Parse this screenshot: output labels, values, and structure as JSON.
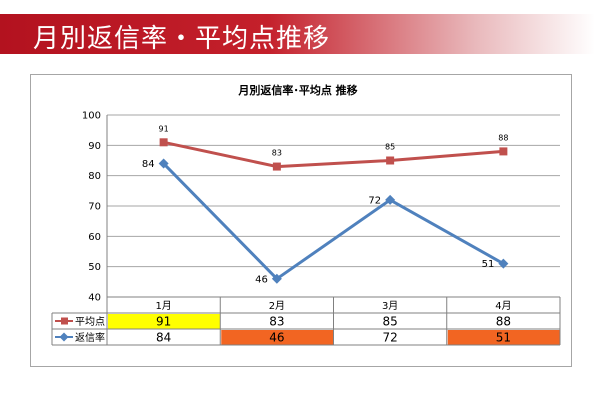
{
  "banner": {
    "title": "月別返信率・平均点推移"
  },
  "chart_data": {
    "type": "line",
    "title": "月別返信率･平均点 推移",
    "categories": [
      "1月",
      "2月",
      "3月",
      "4月"
    ],
    "ylim": [
      40,
      100
    ],
    "yticks": [
      40,
      50,
      60,
      70,
      80,
      90,
      100
    ],
    "grid": true,
    "legend": "data-table",
    "series": [
      {
        "name": "平均点",
        "values": [
          91,
          83,
          85,
          88
        ],
        "color": "#c0504d",
        "marker": "square",
        "table_values": [
          "91",
          "83",
          "85",
          "88"
        ]
      },
      {
        "name": "返信率",
        "values": [
          84,
          46,
          72,
          51
        ],
        "color": "#4f81bd",
        "marker": "diamond",
        "table_values": [
          "84",
          "46",
          "72",
          "51"
        ]
      }
    ],
    "table_highlights": {
      "平均点": [
        "#ffff00",
        null,
        null,
        null
      ],
      "返信率": [
        null,
        "#f26522",
        null,
        "#f26522"
      ]
    }
  }
}
